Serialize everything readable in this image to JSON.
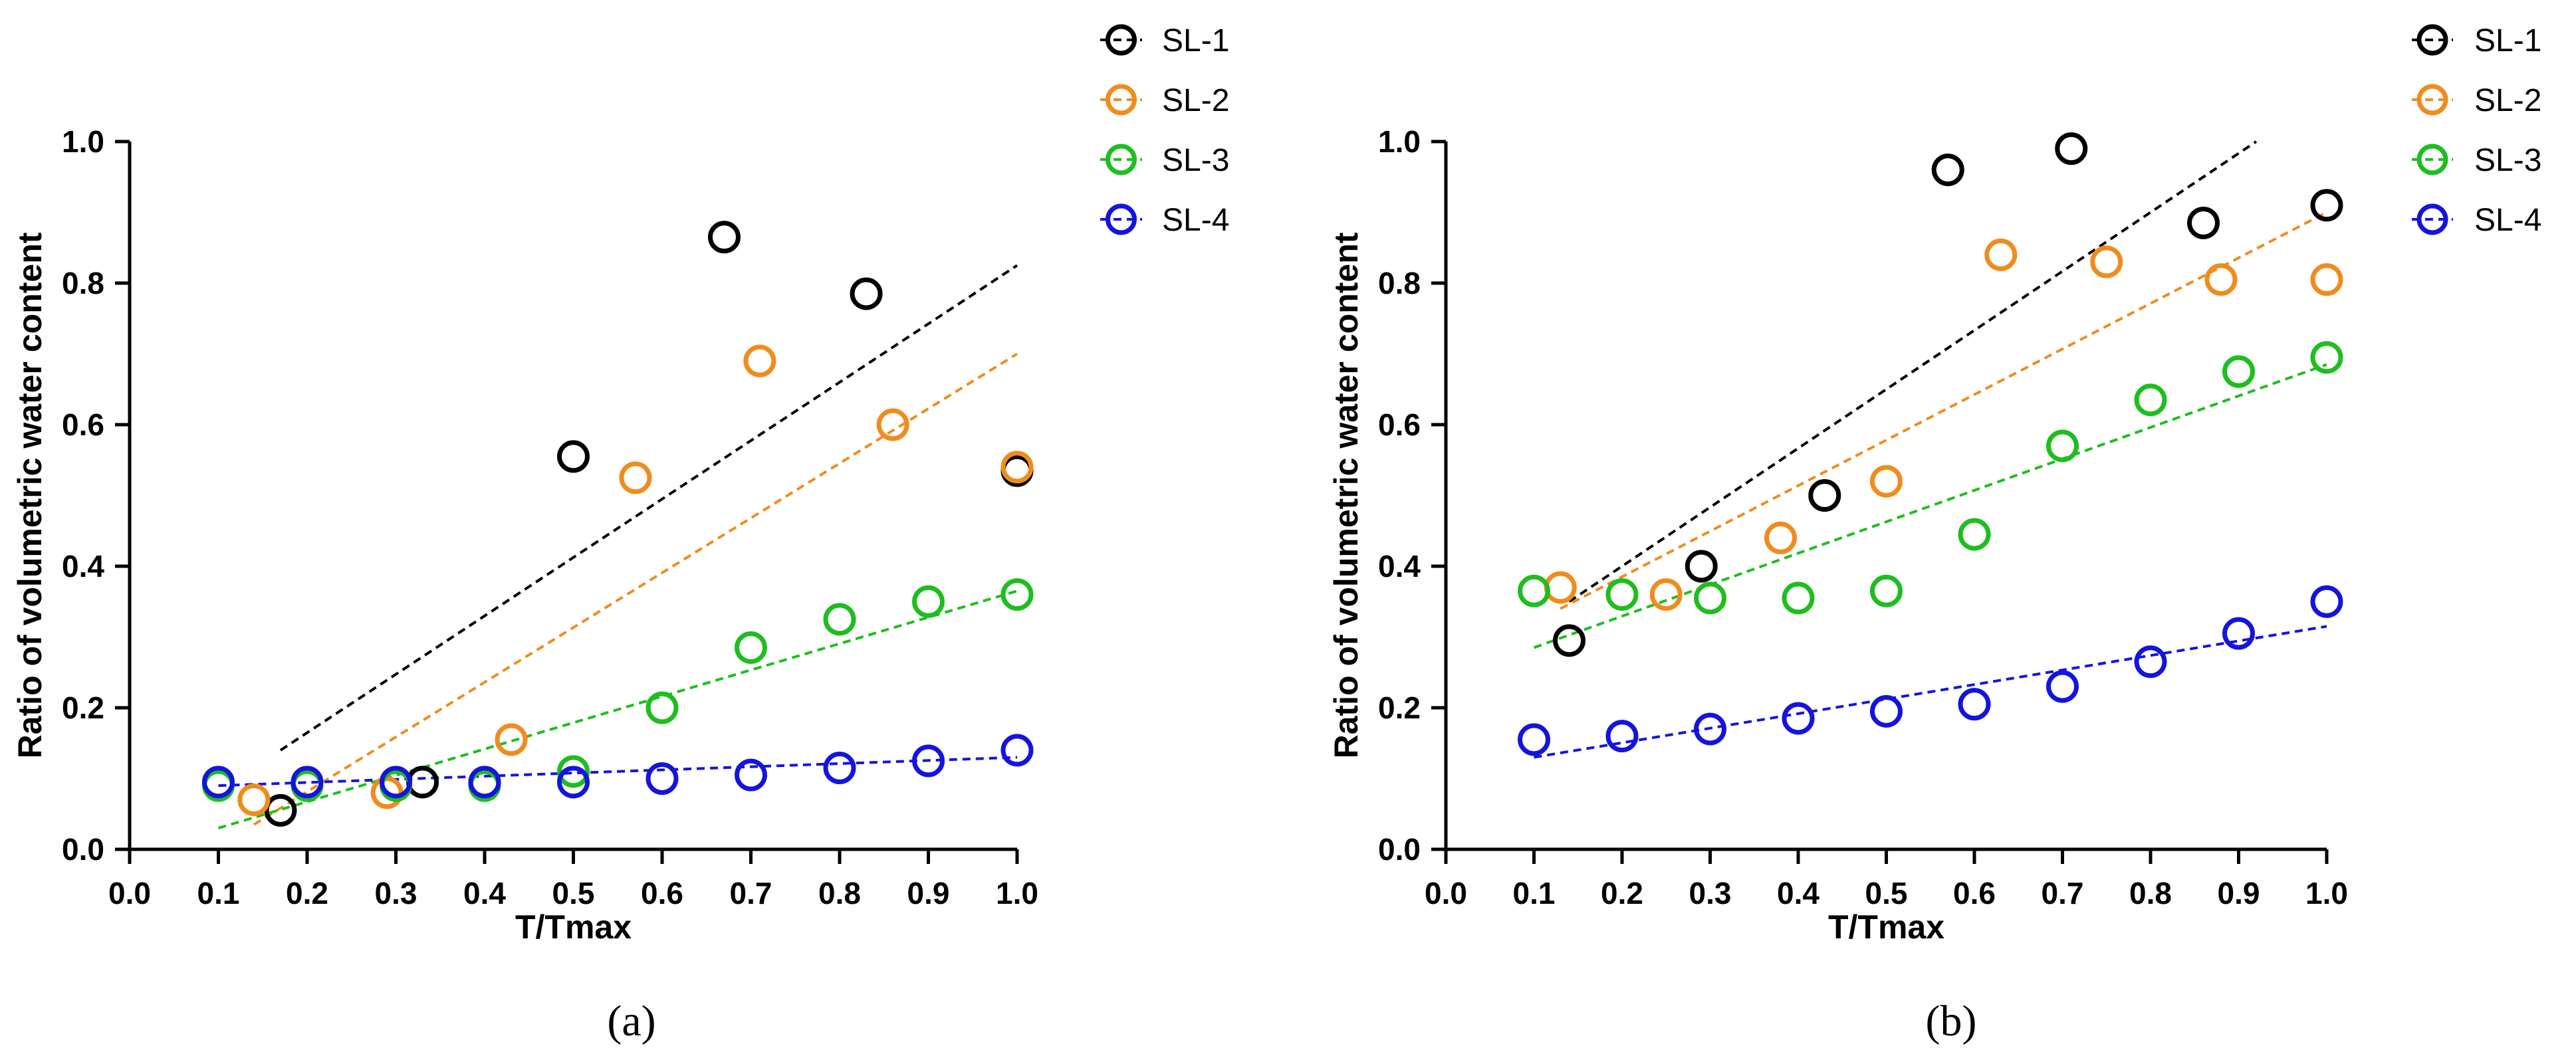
{
  "chart_data": [
    {
      "type": "scatter",
      "panel_label": "(a)",
      "xlabel": "T/Tmax",
      "ylabel": "Ratio of volumetric water content",
      "xlim": [
        0.0,
        1.0
      ],
      "ylim": [
        0.0,
        1.0
      ],
      "xticks": [
        "0.0",
        "0.1",
        "0.2",
        "0.3",
        "0.4",
        "0.5",
        "0.6",
        "0.7",
        "0.8",
        "0.9",
        "1.0"
      ],
      "yticks": [
        "0.0",
        "0.2",
        "0.4",
        "0.6",
        "0.8",
        "1.0"
      ],
      "grid": false,
      "legend_position": "top-right",
      "series": [
        {
          "name": "SL-1",
          "color": "#000000",
          "x": [
            0.17,
            0.33,
            0.5,
            0.67,
            0.83,
            1.0
          ],
          "y": [
            0.055,
            0.095,
            0.555,
            0.865,
            0.785,
            0.535
          ],
          "trendline": [
            [
              0.17,
              0.14
            ],
            [
              1.0,
              0.825
            ]
          ]
        },
        {
          "name": "SL-2",
          "color": "#F08C1E",
          "x": [
            0.14,
            0.29,
            0.43,
            0.57,
            0.71,
            0.86,
            1.0
          ],
          "y": [
            0.07,
            0.08,
            0.155,
            0.525,
            0.69,
            0.6,
            0.54
          ],
          "trendline": [
            [
              0.14,
              0.035
            ],
            [
              1.0,
              0.7
            ]
          ]
        },
        {
          "name": "SL-3",
          "color": "#1EBE1E",
          "x": [
            0.1,
            0.2,
            0.3,
            0.4,
            0.5,
            0.6,
            0.7,
            0.8,
            0.9,
            1.0
          ],
          "y": [
            0.09,
            0.09,
            0.09,
            0.09,
            0.11,
            0.2,
            0.285,
            0.325,
            0.35,
            0.36
          ],
          "trendline": [
            [
              0.1,
              0.03
            ],
            [
              1.0,
              0.365
            ]
          ]
        },
        {
          "name": "SL-4",
          "color": "#1414DC",
          "x": [
            0.1,
            0.2,
            0.3,
            0.4,
            0.5,
            0.6,
            0.7,
            0.8,
            0.9,
            1.0
          ],
          "y": [
            0.095,
            0.095,
            0.095,
            0.095,
            0.095,
            0.1,
            0.105,
            0.115,
            0.125,
            0.14
          ],
          "trendline": [
            [
              0.1,
              0.09
            ],
            [
              1.0,
              0.13
            ]
          ]
        }
      ]
    },
    {
      "type": "scatter",
      "panel_label": "(b)",
      "xlabel": "T/Tmax",
      "ylabel": "Ratio of volumetric water content",
      "xlim": [
        0.0,
        1.0
      ],
      "ylim": [
        0.0,
        1.0
      ],
      "xticks": [
        "0.0",
        "0.1",
        "0.2",
        "0.3",
        "0.4",
        "0.5",
        "0.6",
        "0.7",
        "0.8",
        "0.9",
        "1.0"
      ],
      "yticks": [
        "0.0",
        "0.2",
        "0.4",
        "0.6",
        "0.8",
        "1.0"
      ],
      "grid": false,
      "legend_position": "top-right",
      "series": [
        {
          "name": "SL-1",
          "color": "#000000",
          "x": [
            0.14,
            0.29,
            0.43,
            0.57,
            0.71,
            0.86,
            1.0
          ],
          "y": [
            0.295,
            0.4,
            0.5,
            0.96,
            0.99,
            0.885,
            0.91
          ],
          "trendline": [
            [
              0.14,
              0.35
            ],
            [
              0.92,
              1.0
            ]
          ]
        },
        {
          "name": "SL-2",
          "color": "#F08C1E",
          "x": [
            0.13,
            0.25,
            0.38,
            0.5,
            0.63,
            0.75,
            0.88,
            1.0
          ],
          "y": [
            0.37,
            0.36,
            0.44,
            0.52,
            0.84,
            0.83,
            0.805,
            0.805
          ],
          "trendline": [
            [
              0.13,
              0.34
            ],
            [
              1.0,
              0.9
            ]
          ]
        },
        {
          "name": "SL-3",
          "color": "#1EBE1E",
          "x": [
            0.1,
            0.2,
            0.3,
            0.4,
            0.5,
            0.6,
            0.7,
            0.8,
            0.9,
            1.0
          ],
          "y": [
            0.365,
            0.36,
            0.355,
            0.355,
            0.365,
            0.445,
            0.57,
            0.635,
            0.675,
            0.695
          ],
          "trendline": [
            [
              0.1,
              0.285
            ],
            [
              1.0,
              0.685
            ]
          ]
        },
        {
          "name": "SL-4",
          "color": "#1414DC",
          "x": [
            0.1,
            0.2,
            0.3,
            0.4,
            0.5,
            0.6,
            0.7,
            0.8,
            0.9,
            1.0
          ],
          "y": [
            0.155,
            0.16,
            0.17,
            0.185,
            0.195,
            0.205,
            0.23,
            0.265,
            0.305,
            0.35
          ],
          "trendline": [
            [
              0.1,
              0.13
            ],
            [
              1.0,
              0.315
            ]
          ]
        }
      ]
    }
  ]
}
